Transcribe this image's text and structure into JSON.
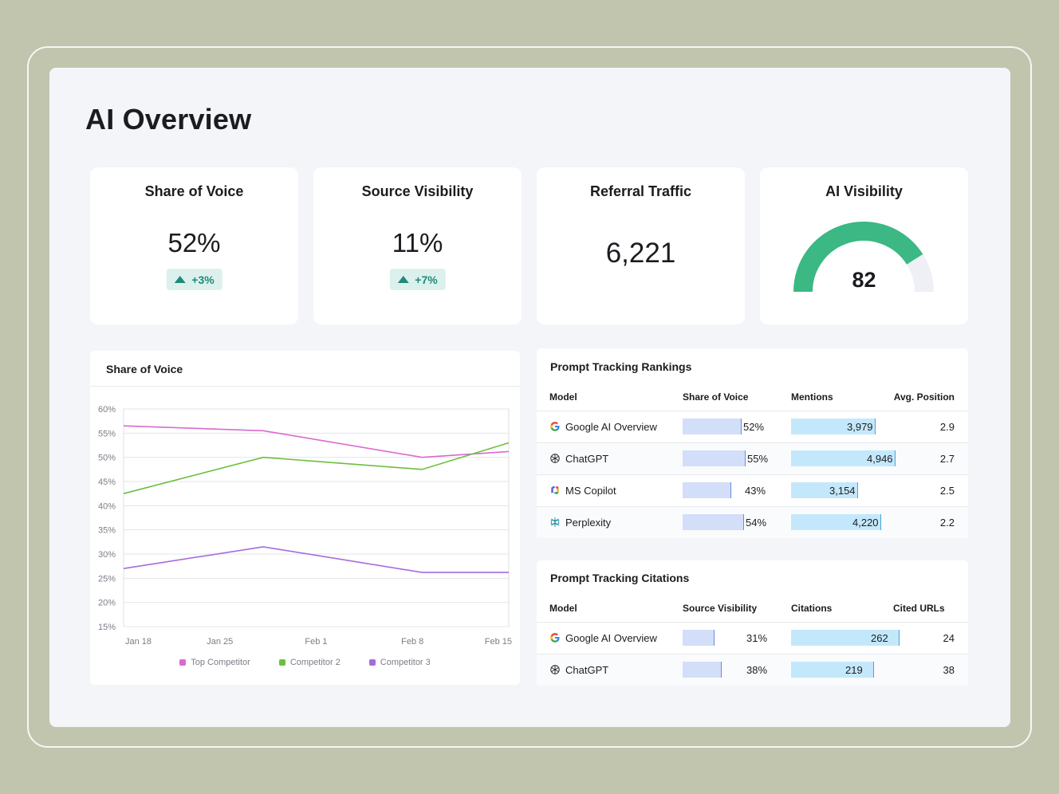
{
  "page": {
    "title": "AI Overview"
  },
  "colors": {
    "teal": "#1f8a76",
    "gauge": "#3bb883",
    "pink": "#d86bcf",
    "green": "#6cbf3e",
    "purple": "#a46ddb"
  },
  "kpis": [
    {
      "title": "Share of Voice",
      "value": "52%",
      "delta": "+3%"
    },
    {
      "title": "Source Visibility",
      "value": "11%",
      "delta": "+7%"
    },
    {
      "title": "Referral Traffic",
      "value": "6,221"
    },
    {
      "title": "AI Visibility",
      "value": "82",
      "gauge_fraction": 0.82
    }
  ],
  "chart_card": {
    "title": "Share of Voice"
  },
  "chart_data": {
    "type": "line",
    "x": [
      "Jan 18",
      "Jan 25",
      "Feb 1",
      "Feb 8",
      "Feb 15"
    ],
    "y_ticks": [
      "60%",
      "55%",
      "50%",
      "45%",
      "40%",
      "35%",
      "30%",
      "25%",
      "20%",
      "15%"
    ],
    "ylim": [
      15,
      60
    ],
    "grid": true,
    "legend_position": "bottom",
    "series": [
      {
        "name": "Top Competitor",
        "color": "#d86bcf",
        "points": [
          [
            0,
            56.5
          ],
          [
            1.45,
            55.5
          ],
          [
            3.1,
            50
          ],
          [
            4,
            51.2
          ]
        ]
      },
      {
        "name": "Competitor 2",
        "color": "#6cbf3e",
        "points": [
          [
            0,
            42.5
          ],
          [
            1.45,
            50
          ],
          [
            3.1,
            47.5
          ],
          [
            4,
            53
          ]
        ]
      },
      {
        "name": "Competitor 3",
        "color": "#a46ddb",
        "points": [
          [
            0,
            27
          ],
          [
            1.45,
            31.5
          ],
          [
            3.1,
            26.2
          ],
          [
            4,
            26.2
          ]
        ]
      }
    ]
  },
  "rankings": {
    "title": "Prompt Tracking Rankings",
    "headers": [
      "Model",
      "Share of Voice",
      "Mentions",
      "Avg. Position"
    ],
    "rows": [
      {
        "icon": "google-icon",
        "model": "Google AI Overview",
        "sov": "52%",
        "sov_frac": 0.52,
        "mentions": "3,979",
        "mentions_frac": 0.58,
        "position": "2.9"
      },
      {
        "icon": "openai-icon",
        "model": "ChatGPT",
        "sov": "55%",
        "sov_frac": 0.55,
        "mentions": "4,946",
        "mentions_frac": 0.72,
        "position": "2.7"
      },
      {
        "icon": "copilot-icon",
        "model": "MS Copilot",
        "sov": "43%",
        "sov_frac": 0.43,
        "mentions": "3,154",
        "mentions_frac": 0.46,
        "position": "2.5"
      },
      {
        "icon": "perplexity-icon",
        "model": "Perplexity",
        "sov": "54%",
        "sov_frac": 0.54,
        "mentions": "4,220",
        "mentions_frac": 0.62,
        "position": "2.2"
      }
    ]
  },
  "citations": {
    "title": "Prompt Tracking Citations",
    "headers": [
      "Model",
      "Source Visibility",
      "Citations",
      "Cited URLs"
    ],
    "rows": [
      {
        "icon": "google-icon",
        "model": "Google AI Overview",
        "vis": "31%",
        "vis_frac": 0.31,
        "citations": "262",
        "citations_frac": 0.72,
        "urls": "24"
      },
      {
        "icon": "openai-icon",
        "model": "ChatGPT",
        "vis": "38%",
        "vis_frac": 0.38,
        "citations": "219",
        "citations_frac": 0.55,
        "urls": "38"
      }
    ]
  }
}
